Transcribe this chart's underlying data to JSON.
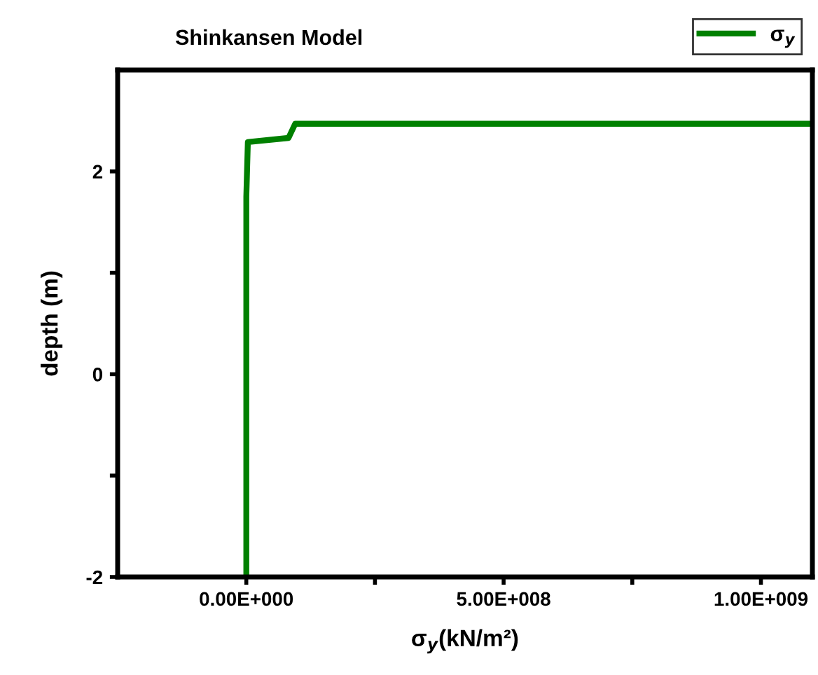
{
  "chart_data": {
    "type": "line",
    "title": "Shinkansen Model",
    "xlabel": "σ$_{y}$(kN/m²)",
    "ylabel": "depth (m)",
    "xlim": [
      -250000000,
      1100000000
    ],
    "xticks": [
      {
        "value": 0,
        "label": "0.00E+000"
      },
      {
        "value": 250000000,
        "label": null
      },
      {
        "value": 500000000,
        "label": "5.00E+008"
      },
      {
        "value": 750000000,
        "label": null
      },
      {
        "value": 1000000000,
        "label": "1.00E+009"
      }
    ],
    "ylim": [
      -2,
      3
    ],
    "yticks": [
      {
        "value": -2,
        "label": "-2"
      },
      {
        "value": -1,
        "label": null
      },
      {
        "value": 0,
        "label": "0"
      },
      {
        "value": 1,
        "label": null
      },
      {
        "value": 2,
        "label": "2"
      }
    ],
    "series": [
      {
        "name": "σ$_{y}$",
        "color": "#008000",
        "x": [
          0,
          0,
          3000000,
          82000000,
          95000000,
          1100000000
        ],
        "values": [
          -2,
          1.75,
          2.29,
          2.33,
          2.47,
          2.47
        ]
      }
    ],
    "legend": "top right",
    "grid": false,
    "marker": "none",
    "line_style": "solid"
  }
}
